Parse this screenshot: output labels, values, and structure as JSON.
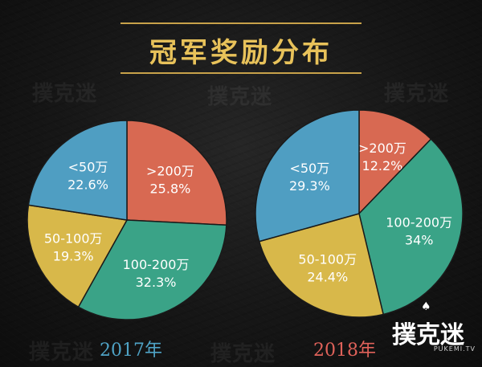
{
  "title": "冠军奖励分布",
  "watermark": "撲克迷",
  "logo": {
    "text": "撲克迷",
    "sub": "PUKEMI.TV"
  },
  "colors": {
    "title": "#e8c25a",
    "year_2017": "#4fa3c6",
    "year_2018": "#e0625a",
    "lt50": "#4f9ec2",
    "gt200": "#d86952",
    "r100_200": "#3aa387",
    "r50_100": "#d8b84a"
  },
  "chart_data": [
    {
      "type": "pie",
      "title": "2017年",
      "slices": [
        {
          "label": ">200万",
          "value": 25.8,
          "text": "25.8%",
          "color": "#d86952"
        },
        {
          "label": "100-200万",
          "value": 32.3,
          "text": "32.3%",
          "color": "#3aa387"
        },
        {
          "label": "50-100万",
          "value": 19.3,
          "text": "19.3%",
          "color": "#d8b84a"
        },
        {
          "label": "<50万",
          "value": 22.6,
          "text": "22.6%",
          "color": "#4f9ec2"
        }
      ]
    },
    {
      "type": "pie",
      "title": "2018年",
      "slices": [
        {
          "label": ">200万",
          "value": 12.2,
          "text": "12.2%",
          "color": "#d86952"
        },
        {
          "label": "100-200万",
          "value": 34,
          "text": "34%",
          "color": "#3aa387"
        },
        {
          "label": "50-100万",
          "value": 24.4,
          "text": "24.4%",
          "color": "#d8b84a"
        },
        {
          "label": "<50万",
          "value": 29.3,
          "text": "29.3%",
          "color": "#4f9ec2"
        }
      ]
    }
  ]
}
